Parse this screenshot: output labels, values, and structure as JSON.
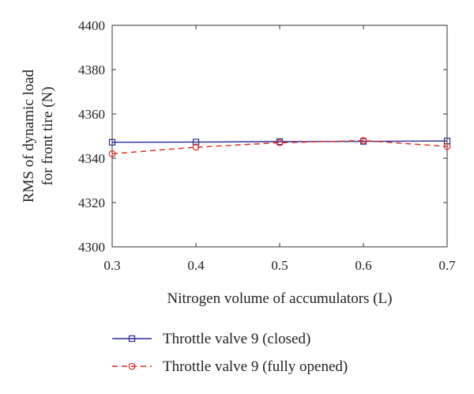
{
  "chart_data": {
    "type": "line",
    "title": "",
    "xlabel": "Nitrogen volume of accumulators (L)",
    "ylabel_lines": [
      "RMS of dynamic load",
      "for front tire (N)"
    ],
    "x": [
      0.3,
      0.4,
      0.5,
      0.6,
      0.7
    ],
    "x_ticks": [
      "0.3",
      "0.4",
      "0.5",
      "0.6",
      "0.7"
    ],
    "y_ticks": [
      "4300",
      "4320",
      "4340",
      "4360",
      "4380",
      "4400"
    ],
    "xlim": [
      0.3,
      0.7
    ],
    "ylim": [
      4300,
      4400
    ],
    "grid": false,
    "legend_position": "bottom",
    "series": [
      {
        "name": "Throttle valve 9 (closed)",
        "values": [
          4347.2,
          4347.3,
          4347.5,
          4347.6,
          4347.8
        ],
        "color": "#2b2b8f",
        "marker": "square",
        "line_style": "solid"
      },
      {
        "name": "Throttle valve 9 (fully opened)",
        "values": [
          4342.0,
          4345.0,
          4347.0,
          4348.0,
          4345.3
        ],
        "color": "#e0281e",
        "marker": "circle",
        "line_style": "dashed"
      }
    ]
  }
}
